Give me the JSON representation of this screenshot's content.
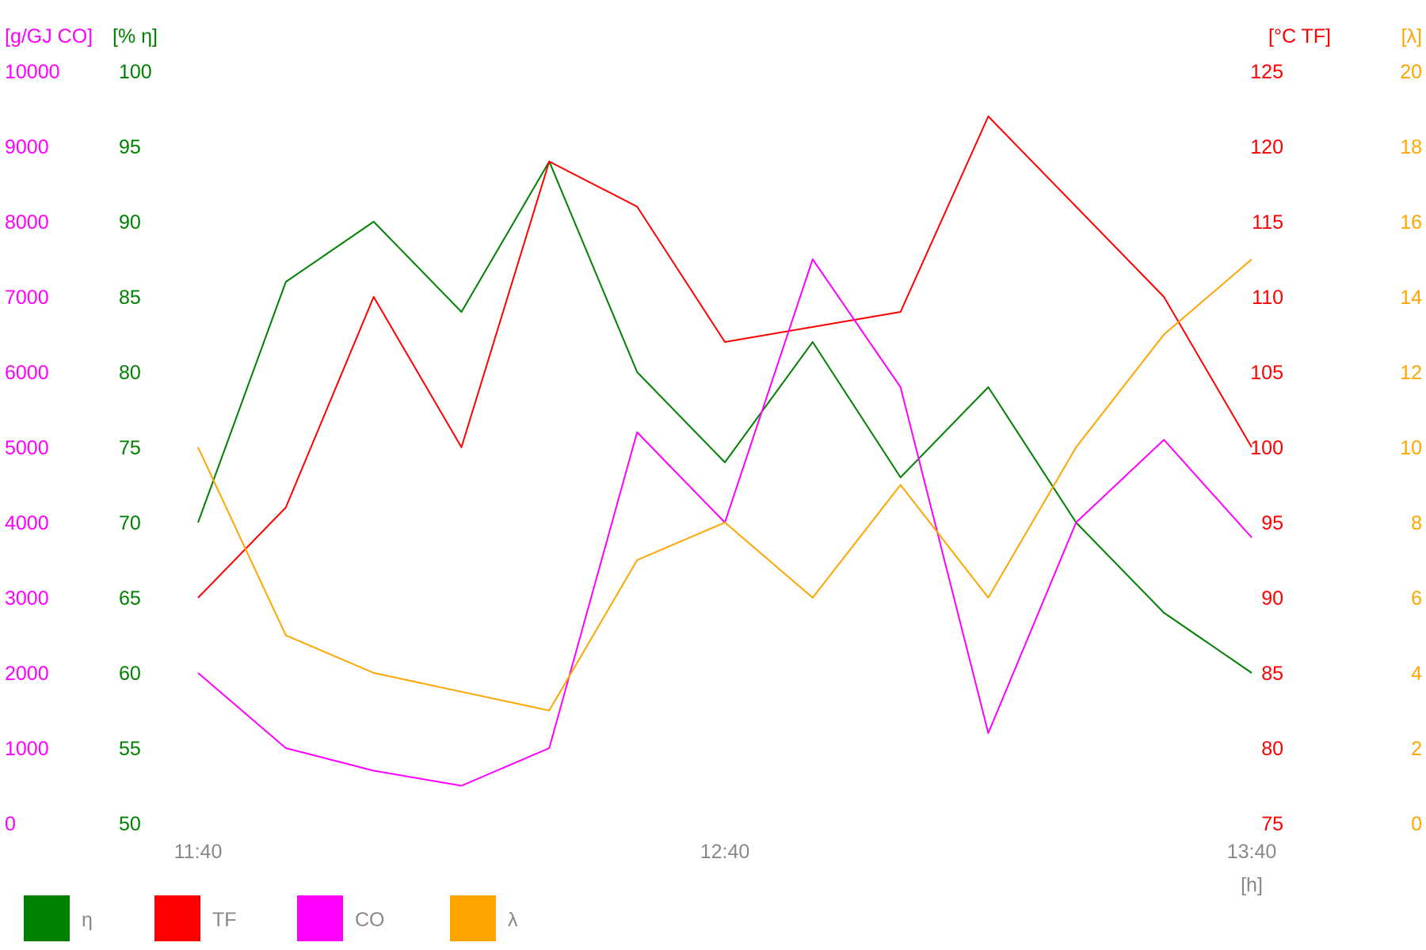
{
  "chart_data": {
    "type": "line",
    "x": [
      "11:40",
      "11:50",
      "12:00",
      "12:10",
      "12:20",
      "12:30",
      "12:40",
      "12:50",
      "13:00",
      "13:10",
      "13:20",
      "13:30",
      "13:40"
    ],
    "x_ticks": [
      "11:40",
      "12:40",
      "13:40"
    ],
    "x_unit": "[h]",
    "grid": false,
    "legend_position": "bottom-left",
    "axes": [
      {
        "id": "co",
        "label": "[g/GJ CO]",
        "color": "#ff00ff",
        "side": "left-outer",
        "range": [
          0,
          10000
        ],
        "ticks": [
          "0",
          "1000",
          "2000",
          "3000",
          "4000",
          "5000",
          "6000",
          "7000",
          "8000",
          "9000",
          "10000"
        ]
      },
      {
        "id": "eta",
        "label": "[% η]",
        "color": "#008000",
        "side": "left-inner",
        "range": [
          50,
          100
        ],
        "ticks": [
          "50",
          "55",
          "60",
          "65",
          "70",
          "75",
          "80",
          "85",
          "90",
          "95",
          "100"
        ]
      },
      {
        "id": "tf",
        "label": "[°C TF]",
        "color": "#ff0000",
        "side": "right-inner",
        "range": [
          75,
          125
        ],
        "ticks": [
          "75",
          "80",
          "85",
          "90",
          "95",
          "100",
          "105",
          "110",
          "115",
          "120",
          "125"
        ]
      },
      {
        "id": "lambda",
        "label": "[λ]",
        "color": "#ffa500",
        "side": "right-outer",
        "range": [
          0,
          20
        ],
        "ticks": [
          "0",
          "2",
          "4",
          "6",
          "8",
          "10",
          "12",
          "14",
          "16",
          "18",
          "20"
        ]
      }
    ],
    "series": [
      {
        "name": "η",
        "axis": "eta",
        "color": "#008000",
        "values": [
          70,
          86,
          90,
          84,
          94,
          80,
          74,
          82,
          73,
          79,
          70,
          64,
          60
        ]
      },
      {
        "name": "TF",
        "axis": "tf",
        "color": "#ff0000",
        "values": [
          90,
          96,
          110,
          100,
          119,
          116,
          107,
          108,
          109,
          122,
          116,
          110,
          100
        ]
      },
      {
        "name": "CO",
        "axis": "co",
        "color": "#ff00ff",
        "values": [
          2000,
          1000,
          700,
          500,
          1000,
          5200,
          4000,
          7500,
          5800,
          1200,
          4000,
          5100,
          3800
        ]
      },
      {
        "name": "λ",
        "axis": "lambda",
        "color": "#ffa500",
        "values": [
          10,
          5,
          4,
          3.5,
          3,
          7,
          8,
          6,
          9,
          6,
          10,
          13,
          15
        ]
      }
    ]
  }
}
